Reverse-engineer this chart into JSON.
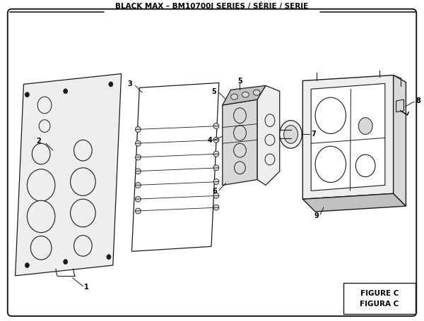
{
  "title": "BLACK MAX – BM10700J SERIES / SÉRIE / SERIE",
  "figure_label": "FIGURE C",
  "figura_label": "FIGURA C",
  "bg_color": "#ffffff",
  "line_color": "#1a1a1a",
  "text_color": "#000000",
  "fill_light": "#eeeeee",
  "fill_mid": "#d8d8d8",
  "fill_dark": "#c0c0c0",
  "title_fontsize": 7.5,
  "figure_label_fontsize": 7.5
}
